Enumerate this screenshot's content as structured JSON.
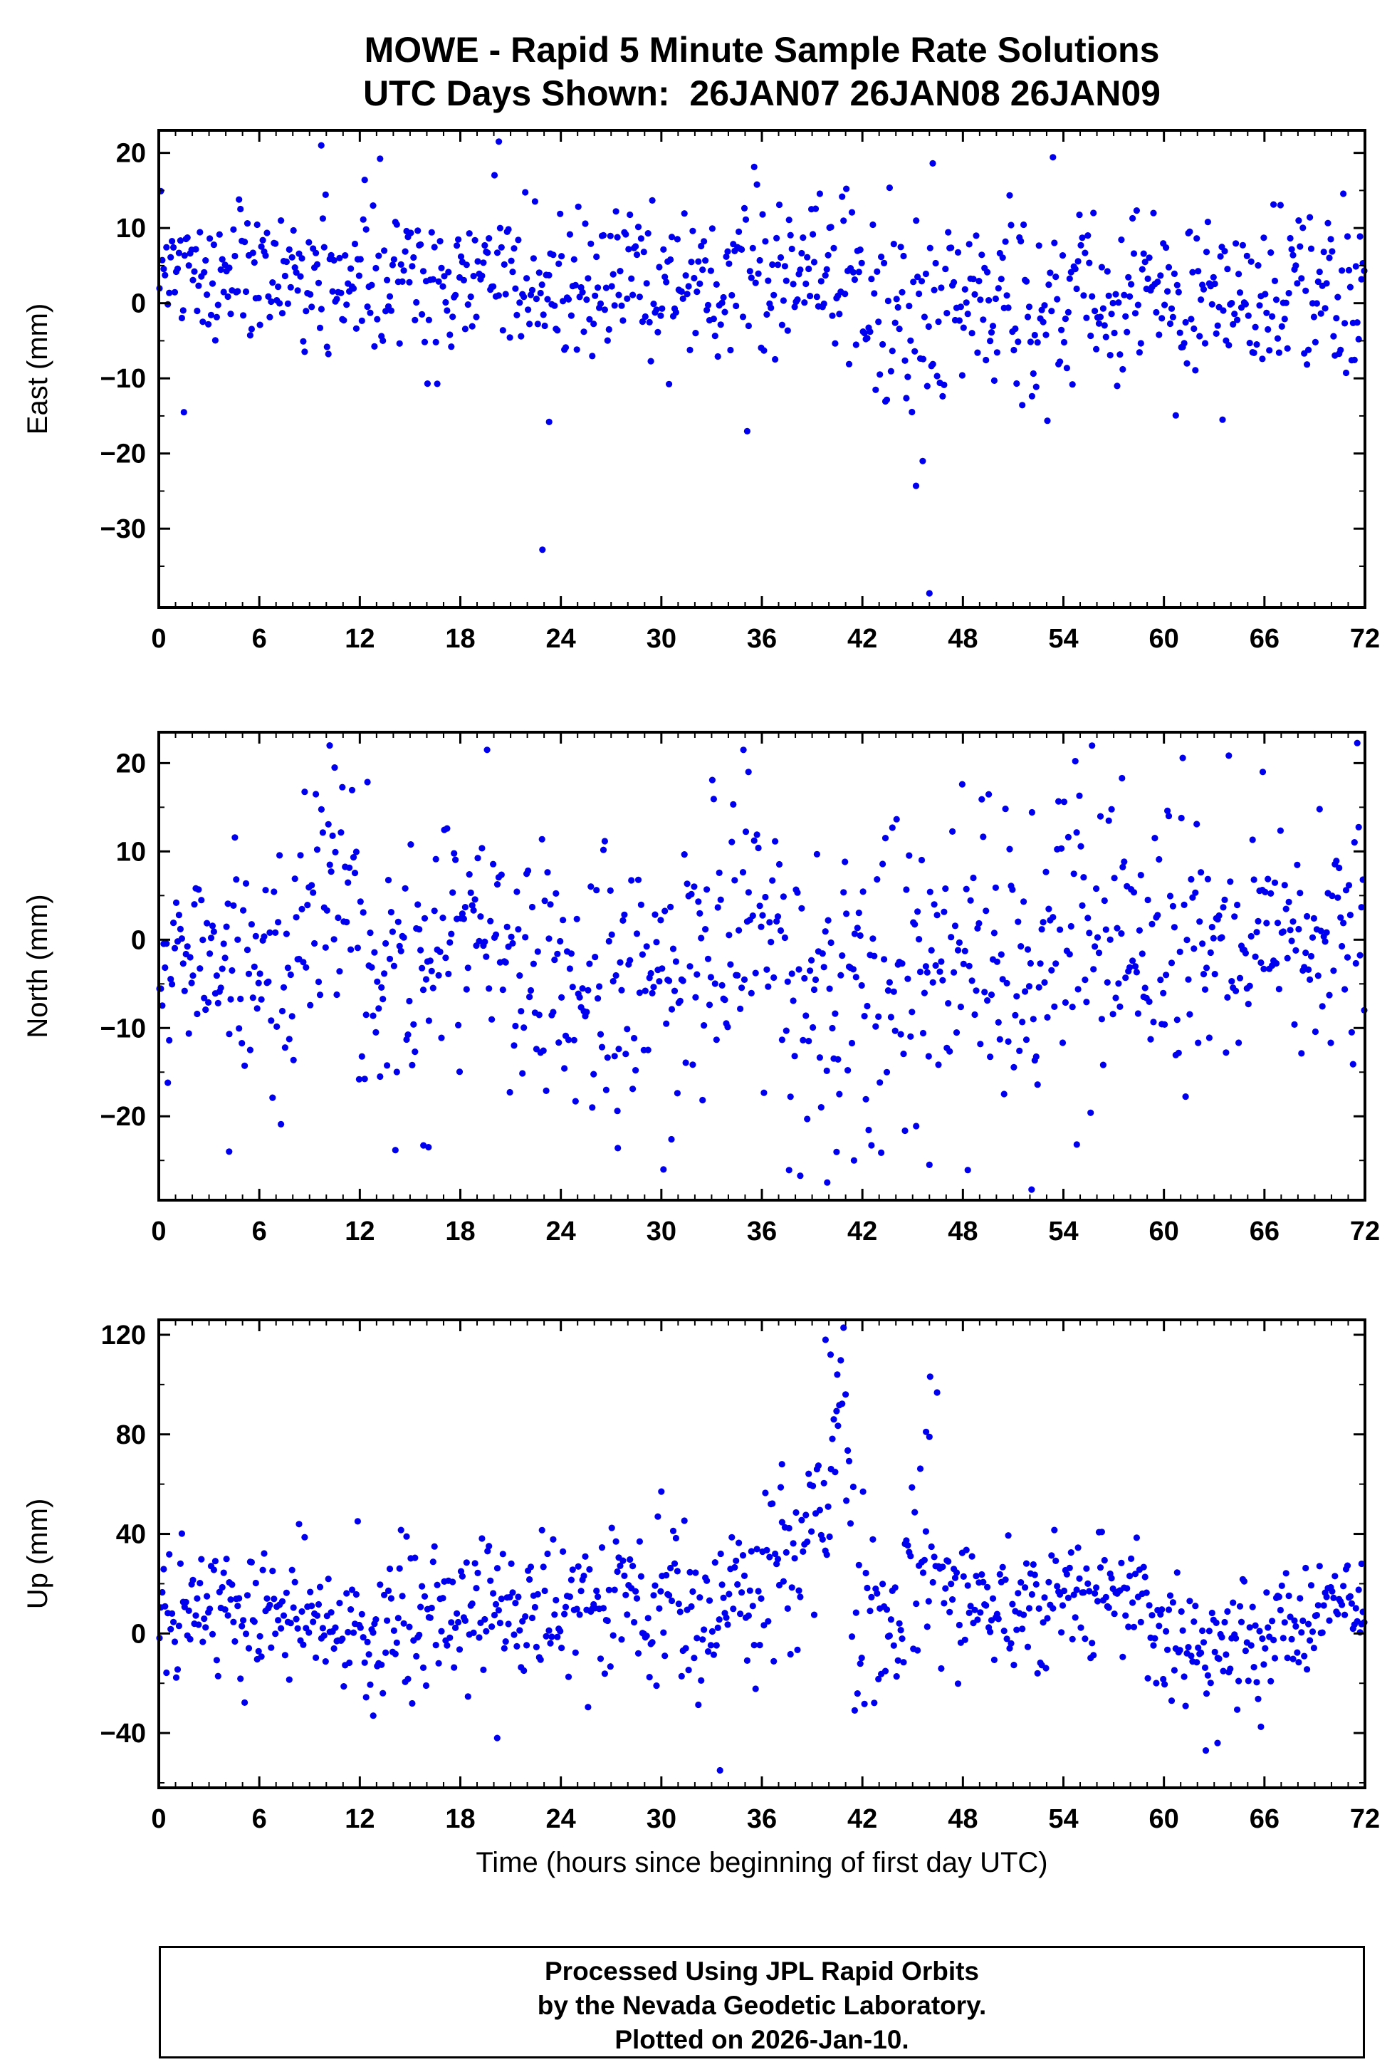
{
  "page": {
    "background": "#ffffff"
  },
  "title": {
    "line1": "MOWE - Rapid 5 Minute Sample Rate Solutions",
    "line2": "UTC Days Shown:  26JAN07 26JAN08 26JAN09"
  },
  "footer": {
    "line1": "Processed Using JPL Rapid Orbits",
    "line2": "by the Nevada Geodetic Laboratory.",
    "line3": "Plotted on 2026-Jan-10."
  },
  "chart_data": {
    "type": "scatter",
    "title": "MOWE - Rapid 5 Minute Sample Rate Solutions",
    "subtitle": "UTC Days Shown:  26JAN07 26JAN08 26JAN09",
    "station": "MOWE",
    "utc_days_shown": [
      "26JAN07",
      "26JAN08",
      "26JAN09"
    ],
    "xlabel": "Time (hours since beginning of first day UTC)",
    "x_range": [
      0,
      72
    ],
    "x_ticks": [
      0,
      6,
      12,
      18,
      24,
      30,
      36,
      42,
      48,
      54,
      60,
      66,
      72
    ],
    "x_minor_step": 1,
    "samples_per_panel": 864,
    "sample_interval_hours": 0.08333,
    "point_color": "#0000ee",
    "axis_color": "#000000",
    "point_radius": 4.6,
    "seed": 20260110,
    "legend": "none",
    "grid": false,
    "panels": [
      {
        "name": "east",
        "ylabel": "East (mm)",
        "ylim": [
          -40.5,
          23
        ],
        "yticks": [
          20,
          10,
          0,
          -10,
          -20,
          -30
        ],
        "y_major_step": 10,
        "y_minor_step": 5,
        "segments": [
          {
            "x0": 0,
            "x1": 4,
            "mean": 3,
            "sd": 5.5
          },
          {
            "x0": 4,
            "x1": 10,
            "mean": 4.5,
            "sd": 5
          },
          {
            "x0": 10,
            "x1": 16,
            "mean": 3.5,
            "sd": 5
          },
          {
            "x0": 16,
            "x1": 22,
            "mean": 3.5,
            "sd": 5.5
          },
          {
            "x0": 22,
            "x1": 26,
            "mean": 1.5,
            "sd": 6
          },
          {
            "x0": 26,
            "x1": 34,
            "mean": 3,
            "sd": 5
          },
          {
            "x0": 34,
            "x1": 42,
            "mean": 3.5,
            "sd": 5.5
          },
          {
            "x0": 42,
            "x1": 47,
            "mean": -2,
            "sd": 6.5
          },
          {
            "x0": 47,
            "x1": 53,
            "mean": 0.5,
            "sd": 6
          },
          {
            "x0": 53,
            "x1": 60,
            "mean": 2,
            "sd": 5.5
          },
          {
            "x0": 60,
            "x1": 66,
            "mean": 0.5,
            "sd": 5.5
          },
          {
            "x0": 66,
            "x1": 72,
            "mean": 0.5,
            "sd": 6
          }
        ],
        "outliers": [
          [
            1.5,
            -14.5
          ],
          [
            9.7,
            21
          ],
          [
            20.3,
            21.5
          ],
          [
            22.9,
            -32.8
          ],
          [
            23.3,
            -15.8
          ],
          [
            45.2,
            -24.3
          ],
          [
            45.6,
            -21.0
          ],
          [
            46.0,
            -38.6
          ],
          [
            46.2,
            18.6
          ],
          [
            63.5,
            -15.5
          ]
        ]
      },
      {
        "name": "north",
        "ylabel": "North (mm)",
        "ylim": [
          -29.5,
          23.5
        ],
        "yticks": [
          20,
          10,
          0,
          -10,
          -20
        ],
        "y_major_step": 10,
        "y_minor_step": 5,
        "segments": [
          {
            "x0": 0,
            "x1": 4,
            "mean": -2,
            "sd": 6
          },
          {
            "x0": 4,
            "x1": 8,
            "mean": -3,
            "sd": 7
          },
          {
            "x0": 8,
            "x1": 12,
            "mean": 2,
            "sd": 8
          },
          {
            "x0": 12,
            "x1": 16,
            "mean": -3,
            "sd": 8
          },
          {
            "x0": 16,
            "x1": 20,
            "mean": 0,
            "sd": 8
          },
          {
            "x0": 20,
            "x1": 24,
            "mean": -2,
            "sd": 7
          },
          {
            "x0": 24,
            "x1": 30,
            "mean": -5,
            "sd": 7.5
          },
          {
            "x0": 30,
            "x1": 34,
            "mean": -2,
            "sd": 8
          },
          {
            "x0": 34,
            "x1": 37,
            "mean": 3,
            "sd": 8
          },
          {
            "x0": 37,
            "x1": 44,
            "mean": -6,
            "sd": 9
          },
          {
            "x0": 44,
            "x1": 48,
            "mean": -3,
            "sd": 8.5
          },
          {
            "x0": 48,
            "x1": 53,
            "mean": -4,
            "sd": 8
          },
          {
            "x0": 53,
            "x1": 58,
            "mean": 1,
            "sd": 8
          },
          {
            "x0": 58,
            "x1": 62,
            "mean": 1,
            "sd": 8
          },
          {
            "x0": 62,
            "x1": 67,
            "mean": -2,
            "sd": 7.5
          },
          {
            "x0": 67,
            "x1": 72,
            "mean": -1,
            "sd": 7
          }
        ],
        "outliers": [
          [
            4.2,
            -24
          ],
          [
            10.2,
            22
          ],
          [
            10.5,
            19.5
          ],
          [
            15.8,
            -23.3
          ],
          [
            16.1,
            -23.5
          ],
          [
            19.6,
            21.5
          ],
          [
            27.4,
            -23.6
          ],
          [
            30.6,
            -22.6
          ],
          [
            34.9,
            21.5
          ],
          [
            35.2,
            19
          ],
          [
            39.9,
            -27.5
          ],
          [
            41.5,
            -25
          ],
          [
            46.0,
            -25.5
          ],
          [
            52.1,
            -28.3
          ],
          [
            54.8,
            -23.2
          ],
          [
            57.5,
            18.3
          ],
          [
            65.9,
            19
          ]
        ]
      },
      {
        "name": "up",
        "ylabel": "Up (mm)",
        "ylim": [
          -62,
          126
        ],
        "yticks": [
          120,
          80,
          40,
          0,
          -40
        ],
        "y_major_step": 40,
        "y_minor_step": 20,
        "segments": [
          {
            "x0": 0,
            "x1": 3,
            "mean": 10,
            "sd": 14
          },
          {
            "x0": 3,
            "x1": 6,
            "mean": 10,
            "sd": 15
          },
          {
            "x0": 6,
            "x1": 9,
            "mean": 12,
            "sd": 13
          },
          {
            "x0": 9,
            "x1": 12,
            "mean": 5,
            "sd": 14
          },
          {
            "x0": 12,
            "x1": 14,
            "mean": -5,
            "sd": 14
          },
          {
            "x0": 14,
            "x1": 18,
            "mean": 5,
            "sd": 16
          },
          {
            "x0": 18,
            "x1": 21,
            "mean": 10,
            "sd": 15
          },
          {
            "x0": 21,
            "x1": 24,
            "mean": 8,
            "sd": 15
          },
          {
            "x0": 24,
            "x1": 27,
            "mean": 12,
            "sd": 13
          },
          {
            "x0": 27,
            "x1": 30,
            "mean": 15,
            "sd": 16
          },
          {
            "x0": 30,
            "x1": 33,
            "mean": 8,
            "sd": 16
          },
          {
            "x0": 33,
            "x1": 36,
            "mean": 8,
            "sd": 18
          },
          {
            "x0": 36,
            "x1": 38,
            "mean": 25,
            "sd": 16
          },
          {
            "x0": 38,
            "x1": 40,
            "mean": 40,
            "sd": 22
          },
          {
            "x0": 40,
            "x1": 41.3,
            "mean": 75,
            "sd": 25
          },
          {
            "x0": 41.3,
            "x1": 43,
            "mean": 5,
            "sd": 28
          },
          {
            "x0": 43,
            "x1": 44.5,
            "mean": 0,
            "sd": 16
          },
          {
            "x0": 44.5,
            "x1": 46.5,
            "mean": 40,
            "sd": 22
          },
          {
            "x0": 46.5,
            "x1": 49,
            "mean": 15,
            "sd": 14
          },
          {
            "x0": 49,
            "x1": 53,
            "mean": 8,
            "sd": 14
          },
          {
            "x0": 53,
            "x1": 56,
            "mean": 15,
            "sd": 14
          },
          {
            "x0": 56,
            "x1": 59,
            "mean": 18,
            "sd": 13
          },
          {
            "x0": 59,
            "x1": 61,
            "mean": 0,
            "sd": 14
          },
          {
            "x0": 61,
            "x1": 66,
            "mean": -8,
            "sd": 14
          },
          {
            "x0": 66,
            "x1": 69,
            "mean": 2,
            "sd": 12
          },
          {
            "x0": 69,
            "x1": 72,
            "mean": 10,
            "sd": 10
          }
        ],
        "outliers": [
          [
            12.8,
            -33
          ],
          [
            20.2,
            -42
          ],
          [
            30.0,
            57
          ],
          [
            33.5,
            -55
          ],
          [
            37.2,
            68
          ],
          [
            39.8,
            118
          ],
          [
            40.1,
            112
          ],
          [
            40.5,
            104
          ],
          [
            41.0,
            96
          ],
          [
            45.8,
            81
          ],
          [
            46.0,
            79
          ],
          [
            62.5,
            -47
          ],
          [
            63.2,
            -44
          ],
          [
            71.8,
            28
          ]
        ]
      }
    ]
  }
}
